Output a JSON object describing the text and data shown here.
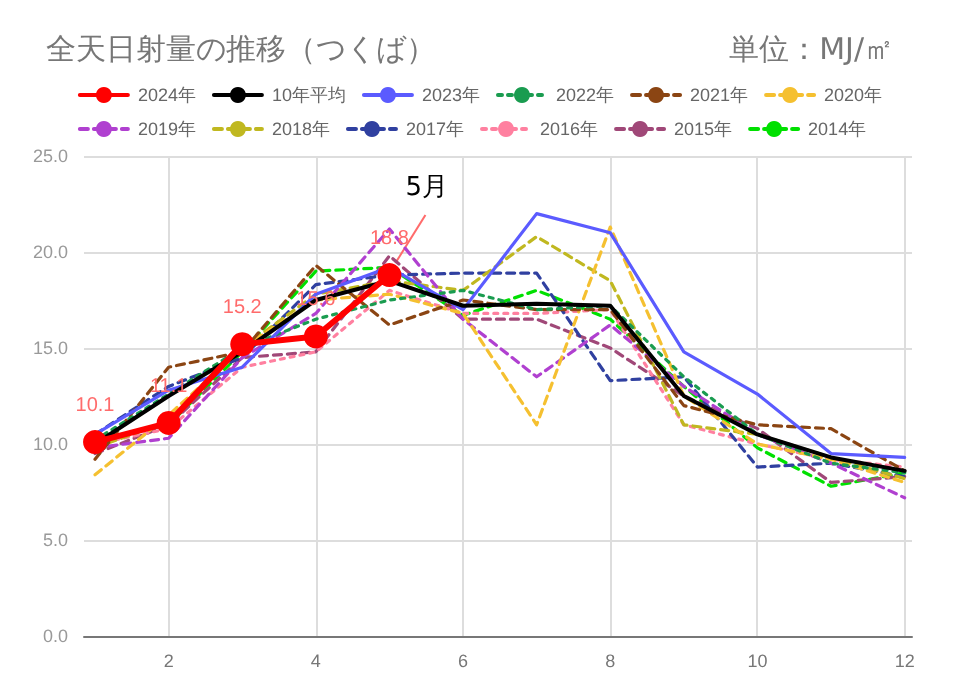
{
  "chart_data": {
    "type": "line",
    "title": "全天日射量の推移（つくば）",
    "subtitle": "単位：MJ/㎡",
    "x": [
      1,
      2,
      3,
      4,
      5,
      6,
      7,
      8,
      9,
      10,
      11,
      12
    ],
    "xlim": [
      0.85,
      12.1
    ],
    "xticks": [
      2,
      4,
      6,
      8,
      10,
      12
    ],
    "ylim": [
      0,
      25
    ],
    "yticks": [
      {
        "value": 0,
        "label": "0.0"
      },
      {
        "value": 5,
        "label": "5.0"
      },
      {
        "value": 10,
        "label": "10.0"
      },
      {
        "value": 15,
        "label": "15.0"
      },
      {
        "value": 20,
        "label": "20.0"
      },
      {
        "value": 25,
        "label": "25.0"
      }
    ],
    "grid": true,
    "legend": "top",
    "marker": "none",
    "annotations": [
      {
        "text": "5月",
        "x": 5,
        "y": 18.8
      }
    ],
    "series": [
      {
        "name": "2024年",
        "color": "#ff0000",
        "marker": "circle",
        "line_style": "solid",
        "values": [
          10.1,
          11.1,
          15.2,
          15.6,
          18.8,
          null,
          null,
          null,
          null,
          null,
          null,
          null
        ],
        "value_labels": [
          "10.1",
          "11.1",
          "15.2",
          "15.6",
          "18.8",
          null,
          null,
          null,
          null,
          null,
          null,
          null
        ]
      },
      {
        "name": "10年平均",
        "color": "#000000",
        "line_style": "solid",
        "values": [
          10.0,
          12.5,
          14.8,
          17.5,
          18.5,
          17.2,
          17.3,
          17.2,
          12.5,
          10.5,
          9.3,
          8.6
        ]
      },
      {
        "name": "2023年",
        "color": "#5b5bff",
        "line_style": "solid",
        "values": [
          10.5,
          12.8,
          14.0,
          17.8,
          19.2,
          17.0,
          22.0,
          21.0,
          14.8,
          12.6,
          9.5,
          9.3
        ]
      },
      {
        "name": "2022年",
        "color": "#1a9c50",
        "line_style": "dotted",
        "values": [
          10.2,
          12.6,
          15.0,
          16.5,
          17.5,
          18.0,
          17.0,
          17.2,
          13.5,
          10.5,
          9.0,
          8.5
        ]
      },
      {
        "name": "2021年",
        "color": "#8b4513",
        "line_style": "dashed",
        "values": [
          9.2,
          14.0,
          14.8,
          19.3,
          16.2,
          17.5,
          17.0,
          17.0,
          12.0,
          11.0,
          10.8,
          8.6
        ]
      },
      {
        "name": "2020年",
        "color": "#f5c030",
        "line_style": "dashed",
        "values": [
          8.4,
          11.5,
          15.0,
          17.5,
          17.8,
          16.8,
          11.0,
          21.3,
          12.5,
          10.0,
          9.2,
          8.0
        ]
      },
      {
        "name": "2019年",
        "color": "#b040d0",
        "line_style": "dashed",
        "values": [
          9.8,
          10.3,
          14.5,
          16.8,
          21.2,
          16.5,
          13.5,
          16.2,
          13.0,
          10.5,
          9.0,
          7.2
        ]
      },
      {
        "name": "2018年",
        "color": "#c0b820",
        "line_style": "dashed",
        "values": [
          9.8,
          11.2,
          15.0,
          17.8,
          18.5,
          18.0,
          20.8,
          18.5,
          11.0,
          10.5,
          9.3,
          8.2
        ]
      },
      {
        "name": "2017年",
        "color": "#3040a0",
        "line_style": "dashed",
        "values": [
          10.5,
          13.0,
          14.5,
          18.3,
          18.8,
          18.9,
          18.9,
          13.3,
          13.5,
          8.8,
          9.0,
          8.3
        ]
      },
      {
        "name": "2016年",
        "color": "#ff80a0",
        "line_style": "dotted",
        "values": [
          10.0,
          10.8,
          14.0,
          14.8,
          18.0,
          16.8,
          16.8,
          17.0,
          11.0,
          10.0,
          9.2,
          8.8
        ]
      },
      {
        "name": "2015年",
        "color": "#a04878",
        "line_style": "dashed",
        "values": [
          9.5,
          11.0,
          14.5,
          14.8,
          19.8,
          16.5,
          16.5,
          15.0,
          12.5,
          10.8,
          8.0,
          8.3
        ]
      },
      {
        "name": "2014年",
        "color": "#00e000",
        "line_style": "dashed",
        "values": [
          10.2,
          11.0,
          14.8,
          19.0,
          19.2,
          16.7,
          18.0,
          16.5,
          13.0,
          9.8,
          7.8,
          8.5
        ]
      }
    ]
  }
}
